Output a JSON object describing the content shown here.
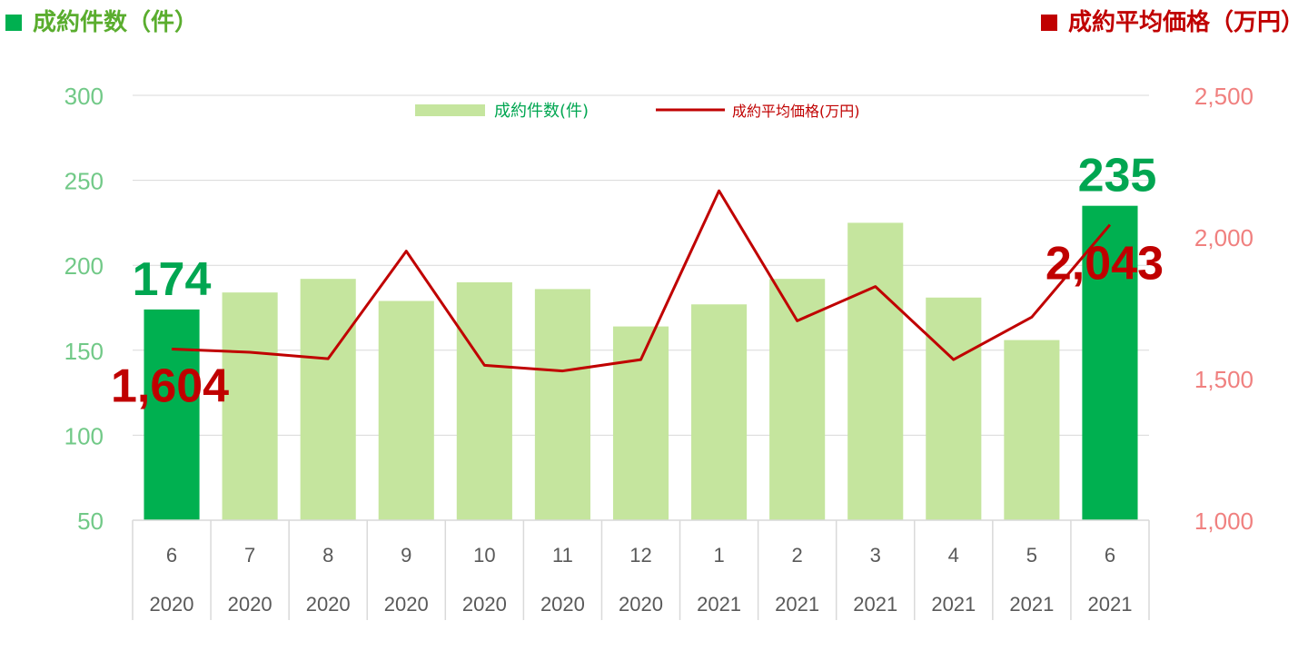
{
  "header": {
    "left_title": "成約件数（件）",
    "right_title": "成約平均価格（万円）"
  },
  "colors": {
    "bar_normal": "#c5e59e",
    "bar_highlight": "#00b050",
    "line": "#c00000",
    "left_axis_text": "#71c987",
    "right_axis_text": "#f0807f",
    "left_header": "#5aad2e",
    "right_header": "#c00000",
    "grid": "#d9d9d9",
    "category_text": "#595959",
    "highlight_bar_label": "#00a651",
    "highlight_line_label": "#c00000"
  },
  "chart_data": {
    "type": "bar",
    "categories": [
      {
        "month": "6",
        "year": "2020"
      },
      {
        "month": "7",
        "year": "2020"
      },
      {
        "month": "8",
        "year": "2020"
      },
      {
        "month": "9",
        "year": "2020"
      },
      {
        "month": "10",
        "year": "2020"
      },
      {
        "month": "11",
        "year": "2020"
      },
      {
        "month": "12",
        "year": "2020"
      },
      {
        "month": "1",
        "year": "2021"
      },
      {
        "month": "2",
        "year": "2021"
      },
      {
        "month": "3",
        "year": "2021"
      },
      {
        "month": "4",
        "year": "2021"
      },
      {
        "month": "5",
        "year": "2021"
      },
      {
        "month": "6",
        "year": "2021"
      }
    ],
    "series": [
      {
        "name": "成約件数(件)",
        "type": "bar",
        "axis": "left",
        "values": [
          174,
          184,
          192,
          179,
          190,
          186,
          164,
          177,
          192,
          225,
          181,
          156,
          235
        ],
        "highlight_indices": [
          0,
          12
        ]
      },
      {
        "name": "成約平均価格(万円)",
        "type": "line",
        "axis": "right",
        "values": [
          1604,
          1593,
          1570,
          1950,
          1547,
          1527,
          1567,
          2163,
          1704,
          1825,
          1567,
          1717,
          2043
        ]
      }
    ],
    "left_axis": {
      "min": 50,
      "max": 300,
      "ticks": [
        "50",
        "100",
        "150",
        "200",
        "250",
        "300"
      ]
    },
    "right_axis": {
      "min": 1000,
      "max": 2500,
      "ticks": [
        "1,000",
        "1,500",
        "2,000",
        "2,500"
      ]
    },
    "grid": true,
    "legend_position": "top-center",
    "annotations": [
      {
        "series": 0,
        "index": 0,
        "text": "174"
      },
      {
        "series": 0,
        "index": 12,
        "text": "235"
      },
      {
        "series": 1,
        "index": 0,
        "text": "1,604"
      },
      {
        "series": 1,
        "index": 12,
        "text": "2,043"
      }
    ]
  }
}
